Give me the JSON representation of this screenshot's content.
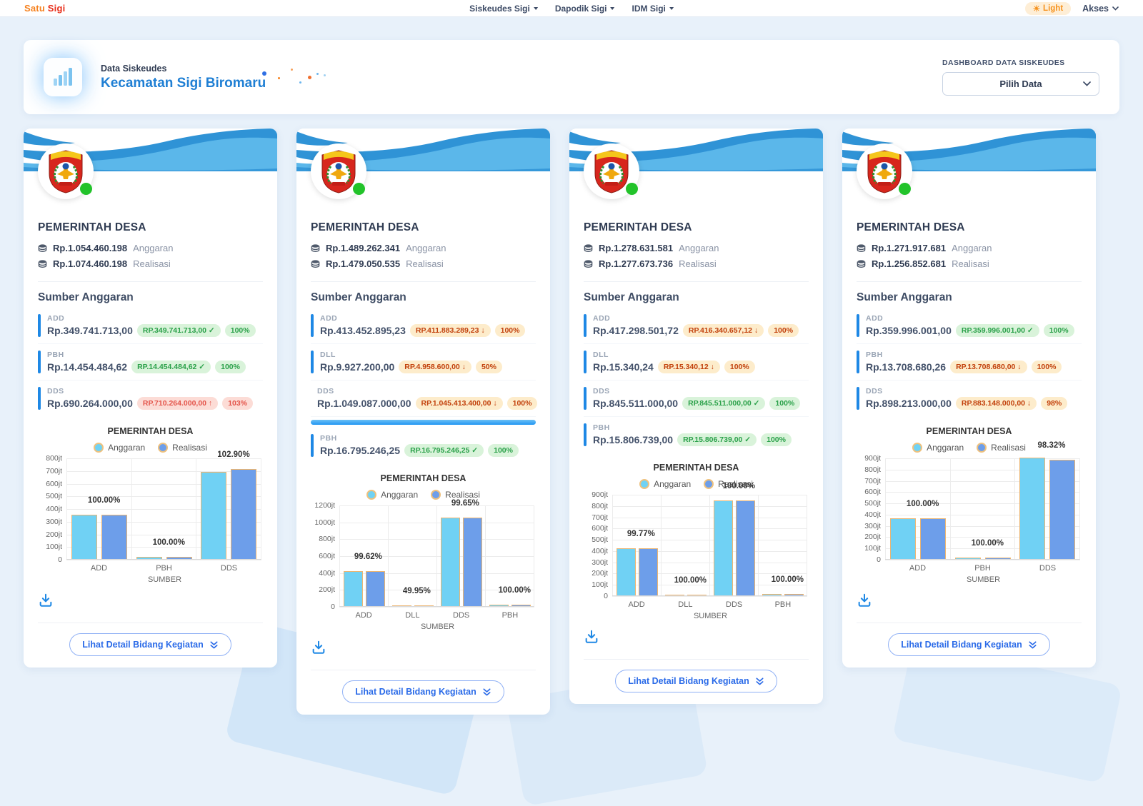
{
  "topbar": {
    "brand_satu": "Satu",
    "brand_sigi": "Sigi",
    "nav": [
      {
        "label": "Siskeudes Sigi"
      },
      {
        "label": "Dapodik Sigi"
      },
      {
        "label": "IDM Sigi"
      }
    ],
    "theme_label": "Light",
    "akses_label": "Akses"
  },
  "hero": {
    "subtitle": "Data Siskeudes",
    "title": "Kecamatan Sigi Biromaru",
    "panel_label": "DASHBOARD DATA SISKEUDES",
    "select_value": "Pilih Data"
  },
  "colors": {
    "accent_blue": "#1e88e5",
    "bar_anggaran": "#70d1f4",
    "bar_realisasi": "#6d9eea",
    "badge_ok_text": "#2ba14a",
    "badge_under_text": "#c2410c",
    "badge_over_text": "#e4564c",
    "brand_orange": "#f6821f",
    "brand_red": "#e8301c"
  },
  "icons": {
    "hero": "bar-chart-icon",
    "money": "coins-icon",
    "theme": "sun-icon",
    "select": "chevron-down-icon",
    "download": "download-icon",
    "detail_button": "double-chevron-down-icon",
    "status": "green-status-dot"
  },
  "cards": [
    {
      "title": "PEMERINTAH DESA",
      "anggaran": "Rp.1.054.460.198",
      "anggaran_label": "Anggaran",
      "realisasi": "Rp.1.074.460.198",
      "realisasi_label": "Realisasi",
      "sumber_title": "Sumber Anggaran",
      "sumber": [
        {
          "code": "ADD",
          "value": "Rp.349.741.713,00",
          "badge": "RP.349.741.713,00",
          "status": "ok",
          "pct": "100%"
        },
        {
          "code": "PBH",
          "value": "Rp.14.454.484,62",
          "badge": "RP.14.454.484,62",
          "status": "ok",
          "pct": "100%"
        },
        {
          "code": "DDS",
          "value": "Rp.690.264.000,00",
          "badge": "RP.710.264.000,00",
          "status": "over",
          "pct": "103%"
        }
      ],
      "chart_data": {
        "type": "bar",
        "title": "PEMERINTAH DESA",
        "legend": [
          "Anggaran",
          "Realisasi"
        ],
        "categories": [
          "ADD",
          "PBH",
          "DDS"
        ],
        "series": [
          {
            "name": "Anggaran",
            "values": [
              349.7,
              14.5,
              690.3
            ]
          },
          {
            "name": "Realisasi",
            "values": [
              349.7,
              14.5,
              710.3
            ]
          }
        ],
        "labels": [
          "100.00%",
          "100.00%",
          "102.90%"
        ],
        "ymax": 800,
        "ystep": 100,
        "unit": "jt",
        "xlabel": "SUMBER"
      },
      "button_label": "Lihat Detail Bidang Kegiatan"
    },
    {
      "title": "PEMERINTAH DESA",
      "anggaran": "Rp.1.489.262.341",
      "anggaran_label": "Anggaran",
      "realisasi": "Rp.1.479.050.535",
      "realisasi_label": "Realisasi",
      "sumber_title": "Sumber Anggaran",
      "scrollbar_after": 2,
      "sumber": [
        {
          "code": "ADD",
          "value": "Rp.413.452.895,23",
          "badge": "RP.411.883.289,23",
          "status": "under",
          "pct": "100%"
        },
        {
          "code": "DLL",
          "value": "Rp.9.927.200,00",
          "badge": "RP.4.958.600,00",
          "status": "under",
          "pct": "50%"
        },
        {
          "code": "DDS",
          "value": "Rp.1.049.087.000,00",
          "badge": "RP.1.045.413.400,00",
          "status": "under",
          "pct": "100%"
        },
        {
          "code": "PBH",
          "value": "Rp.16.795.246,25",
          "badge": "RP.16.795.246,25",
          "status": "ok",
          "pct": "100%"
        }
      ],
      "chart_data": {
        "type": "bar",
        "title": "PEMERINTAH DESA",
        "legend": [
          "Anggaran",
          "Realisasi"
        ],
        "categories": [
          "ADD",
          "DLL",
          "DDS",
          "PBH"
        ],
        "series": [
          {
            "name": "Anggaran",
            "values": [
              413.5,
              9.9,
              1049.1,
              16.8
            ]
          },
          {
            "name": "Realisasi",
            "values": [
              411.9,
              5.0,
              1045.4,
              16.8
            ]
          }
        ],
        "labels": [
          "99.62%",
          "49.95%",
          "99.65%",
          "100.00%"
        ],
        "ymax": 1200,
        "ystep": 200,
        "unit": "jt",
        "xlabel": "SUMBER"
      },
      "button_label": "Lihat Detail Bidang Kegiatan"
    },
    {
      "title": "PEMERINTAH DESA",
      "anggaran": "Rp.1.278.631.581",
      "anggaran_label": "Anggaran",
      "realisasi": "Rp.1.277.673.736",
      "realisasi_label": "Realisasi",
      "sumber_title": "Sumber Anggaran",
      "sumber": [
        {
          "code": "ADD",
          "value": "Rp.417.298.501,72",
          "badge": "RP.416.340.657,12",
          "status": "under",
          "pct": "100%"
        },
        {
          "code": "DLL",
          "value": "Rp.15.340,24",
          "badge": "RP.15.340,12",
          "status": "under",
          "pct": "100%"
        },
        {
          "code": "DDS",
          "value": "Rp.845.511.000,00",
          "badge": "RP.845.511.000,00",
          "status": "ok",
          "pct": "100%"
        },
        {
          "code": "PBH",
          "value": "Rp.15.806.739,00",
          "badge": "RP.15.806.739,00",
          "status": "ok",
          "pct": "100%"
        }
      ],
      "chart_data": {
        "type": "bar",
        "title": "PEMERINTAH DESA",
        "legend": [
          "Anggaran",
          "Realisasi"
        ],
        "categories": [
          "ADD",
          "DLL",
          "DDS",
          "PBH"
        ],
        "series": [
          {
            "name": "Anggaran",
            "values": [
              417.3,
              0.02,
              845.5,
              15.8
            ]
          },
          {
            "name": "Realisasi",
            "values": [
              416.3,
              0.02,
              845.5,
              15.8
            ]
          }
        ],
        "labels": [
          "99.77%",
          "100.00%",
          "100.00%",
          "100.00%"
        ],
        "ymax": 900,
        "ystep": 100,
        "unit": "jt",
        "xlabel": "SUMBER"
      },
      "button_label": "Lihat Detail Bidang Kegiatan"
    },
    {
      "title": "PEMERINTAH DESA",
      "anggaran": "Rp.1.271.917.681",
      "anggaran_label": "Anggaran",
      "realisasi": "Rp.1.256.852.681",
      "realisasi_label": "Realisasi",
      "sumber_title": "Sumber Anggaran",
      "sumber": [
        {
          "code": "ADD",
          "value": "Rp.359.996.001,00",
          "badge": "RP.359.996.001,00",
          "status": "ok",
          "pct": "100%"
        },
        {
          "code": "PBH",
          "value": "Rp.13.708.680,26",
          "badge": "RP.13.708.680,00",
          "status": "under",
          "pct": "100%"
        },
        {
          "code": "DDS",
          "value": "Rp.898.213.000,00",
          "badge": "RP.883.148.000,00",
          "status": "under",
          "pct": "98%"
        }
      ],
      "chart_data": {
        "type": "bar",
        "title": "PEMERINTAH DESA",
        "legend": [
          "Anggaran",
          "Realisasi"
        ],
        "categories": [
          "ADD",
          "PBH",
          "DDS"
        ],
        "series": [
          {
            "name": "Anggaran",
            "values": [
              360.0,
              13.7,
              898.2
            ]
          },
          {
            "name": "Realisasi",
            "values": [
              360.0,
              13.7,
              883.1
            ]
          }
        ],
        "labels": [
          "100.00%",
          "100.00%",
          "98.32%"
        ],
        "ymax": 900,
        "ystep": 100,
        "unit": "jt",
        "xlabel": "SUMBER"
      },
      "button_label": "Lihat Detail Bidang Kegiatan"
    }
  ]
}
